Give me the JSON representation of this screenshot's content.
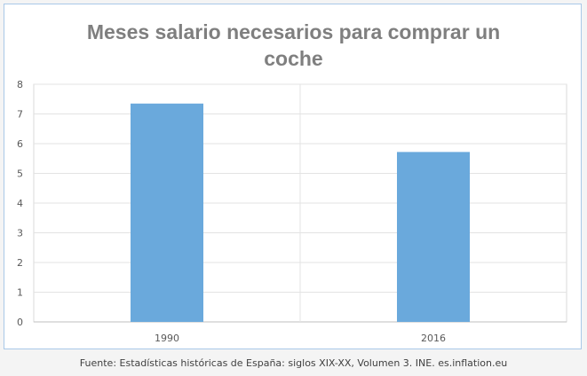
{
  "chart_data": {
    "type": "bar",
    "title": "Meses salario necesarios para comprar un coche",
    "categories": [
      "1990",
      "2016"
    ],
    "values": [
      7.35,
      5.72
    ],
    "xlabel": "",
    "ylabel": "",
    "ylim": [
      0,
      8
    ],
    "yticks": [
      0,
      1,
      2,
      3,
      4,
      5,
      6,
      7,
      8
    ],
    "grid": true,
    "legend": "none",
    "bar_color": "#6aa9dc",
    "source": "Fuente: Estadísticas históricas de España: siglos XIX-XX, Volumen 3. INE. es.inflation.eu"
  }
}
